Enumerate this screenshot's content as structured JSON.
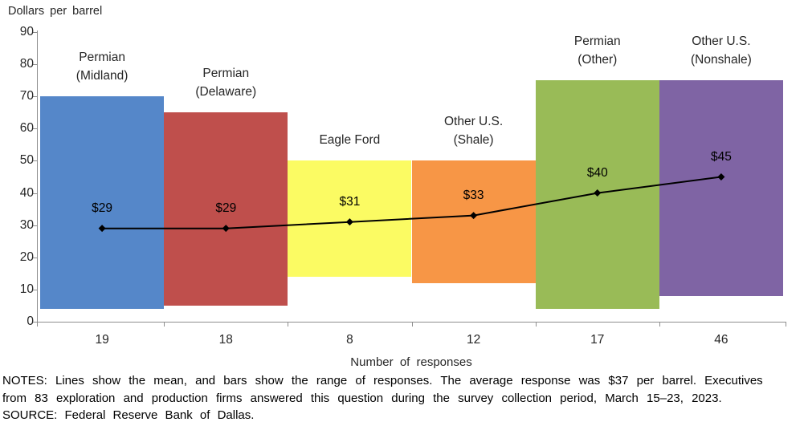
{
  "title": "Dollars per barrel",
  "chart_data": {
    "type": "bar",
    "subtype": "range-bars-with-mean-line",
    "title": "Dollars per barrel",
    "xlabel": "Number of responses",
    "ylabel": "Dollars per barrel",
    "ylim": [
      0,
      90
    ],
    "ytick_step": 10,
    "grid": false,
    "legend": "none",
    "line_color": "#000000",
    "marker": "diamond",
    "categories": [
      "Permian (Midland)",
      "Permian (Delaware)",
      "Eagle Ford",
      "Other U.S. (Shale)",
      "Permian (Other)",
      "Other U.S. (Nonshale)"
    ],
    "regions": [
      {
        "label_lines": [
          "Permian",
          "(Midland)"
        ],
        "responses": "19",
        "range_low": 4,
        "range_high": 70,
        "mean": 29,
        "mean_label": "$29",
        "color": "#5587c9"
      },
      {
        "label_lines": [
          "Permian",
          "(Delaware)"
        ],
        "responses": "18",
        "range_low": 5,
        "range_high": 65,
        "mean": 29,
        "mean_label": "$29",
        "color": "#bf4f4c"
      },
      {
        "label_lines": [
          "Eagle Ford"
        ],
        "responses": "8",
        "range_low": 14,
        "range_high": 50,
        "mean": 31,
        "mean_label": "$31",
        "color": "#fbfb63"
      },
      {
        "label_lines": [
          "Other U.S.",
          "(Shale)"
        ],
        "responses": "12",
        "range_low": 12,
        "range_high": 50,
        "mean": 33,
        "mean_label": "$33",
        "color": "#f79646"
      },
      {
        "label_lines": [
          "Permian",
          "(Other)"
        ],
        "responses": "17",
        "range_low": 4,
        "range_high": 75,
        "mean": 40,
        "mean_label": "$40",
        "color": "#99bb57"
      },
      {
        "label_lines": [
          "Other U.S.",
          "(Nonshale)"
        ],
        "responses": "46",
        "range_low": 8,
        "range_high": 75,
        "mean": 45,
        "mean_label": "$45",
        "color": "#7f64a4"
      }
    ],
    "series": [
      {
        "name": "Mean response ($ per barrel)",
        "values": [
          29,
          29,
          31,
          33,
          40,
          45
        ]
      },
      {
        "name": "Range low ($ per barrel)",
        "values": [
          4,
          5,
          14,
          12,
          4,
          8
        ]
      },
      {
        "name": "Range high ($ per barrel)",
        "values": [
          70,
          65,
          50,
          50,
          75,
          75
        ]
      },
      {
        "name": "Number of responses",
        "values": [
          19,
          18,
          8,
          12,
          17,
          46
        ]
      }
    ]
  },
  "footer": {
    "notes_line1": "NOTES: Lines show the mean, and bars show the range of responses. The average response was $37 per barrel. Executives",
    "notes_line2": "from 83 exploration and production firms answered this question during the survey collection period, March 15–23, 2023.",
    "source": "SOURCE: Federal Reserve Bank of Dallas."
  },
  "colors": {
    "axis": "#8e8e8e",
    "text": "#262626",
    "mean_line": "#000000"
  }
}
